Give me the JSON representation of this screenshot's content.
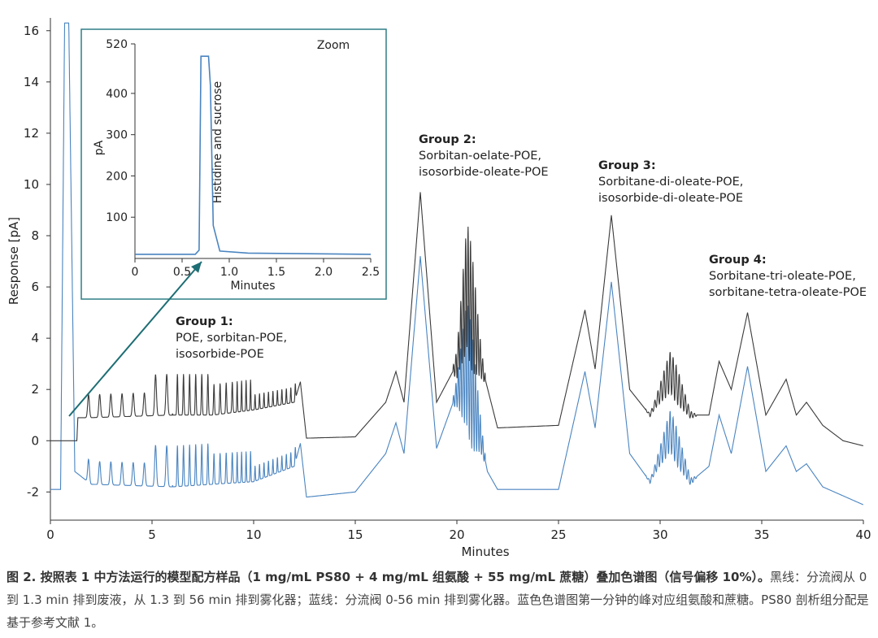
{
  "chart_data": {
    "type": "line",
    "main": {
      "xlabel": "Minutes",
      "ylabel": "Response [pA]",
      "xlim": [
        0,
        40
      ],
      "ylim": [
        -3.1,
        16.5
      ],
      "xticks": [
        "0",
        "5",
        "10",
        "15",
        "20",
        "25",
        "30",
        "35",
        "40"
      ],
      "yticks": [
        "-2",
        "0",
        "2",
        "4",
        "6",
        "8",
        "10",
        "12",
        "14",
        "16"
      ],
      "series": [
        {
          "color": "#3a3a3a",
          "baseline": 0,
          "description_peaks": "sample peak data below"
        },
        {
          "color": "#4a84c0",
          "baseline": -1.9
        }
      ],
      "black_series_points": [
        [
          0,
          0
        ],
        [
          1.3,
          0
        ],
        [
          1.35,
          0.9
        ],
        [
          2.0,
          0.9
        ],
        [
          4.0,
          0.95
        ],
        [
          6.0,
          1.0
        ],
        [
          8.0,
          1.0
        ],
        [
          10.0,
          1.2
        ],
        [
          12.0,
          1.5
        ],
        [
          12.3,
          2.3
        ],
        [
          12.6,
          0.1
        ],
        [
          15.0,
          0.15
        ],
        [
          16.5,
          1.5
        ],
        [
          17.0,
          2.7
        ],
        [
          17.4,
          1.5
        ],
        [
          18.2,
          9.7
        ],
        [
          19.0,
          1.5
        ],
        [
          20.0,
          3.0
        ],
        [
          20.5,
          6.1
        ],
        [
          21.2,
          3.0
        ],
        [
          22.0,
          0.5
        ],
        [
          25.0,
          0.6
        ],
        [
          26.3,
          5.1
        ],
        [
          26.8,
          2.8
        ],
        [
          27.6,
          8.8
        ],
        [
          28.5,
          2.0
        ],
        [
          29.5,
          1.0
        ],
        [
          30.5,
          2.7
        ],
        [
          31.5,
          1.0
        ],
        [
          32.4,
          1.0
        ],
        [
          32.9,
          3.1
        ],
        [
          33.5,
          2.0
        ],
        [
          34.3,
          5.0
        ],
        [
          35.2,
          1.0
        ],
        [
          36.2,
          2.4
        ],
        [
          36.7,
          1.0
        ],
        [
          37.2,
          1.5
        ],
        [
          38.0,
          0.6
        ],
        [
          39.0,
          0.0
        ],
        [
          40.0,
          -0.2
        ]
      ],
      "blue_series_points": [
        [
          0,
          -1.9
        ],
        [
          0.5,
          -1.9
        ],
        [
          0.7,
          16.5
        ],
        [
          0.9,
          16.5
        ],
        [
          1.2,
          -1.2
        ],
        [
          2.0,
          -1.7
        ],
        [
          6.0,
          -1.8
        ],
        [
          10.0,
          -1.6
        ],
        [
          12.0,
          -1.0
        ],
        [
          12.3,
          -0.1
        ],
        [
          12.6,
          -2.2
        ],
        [
          15.0,
          -2.0
        ],
        [
          16.5,
          -0.5
        ],
        [
          17.0,
          0.7
        ],
        [
          17.4,
          -0.5
        ],
        [
          18.2,
          7.2
        ],
        [
          19.0,
          -0.3
        ],
        [
          20.5,
          3.0
        ],
        [
          21.5,
          -1.2
        ],
        [
          22.0,
          -1.9
        ],
        [
          25.0,
          -1.9
        ],
        [
          26.3,
          2.7
        ],
        [
          26.8,
          0.5
        ],
        [
          27.6,
          6.2
        ],
        [
          28.5,
          -0.5
        ],
        [
          29.5,
          -1.6
        ],
        [
          30.5,
          0.4
        ],
        [
          31.5,
          -1.6
        ],
        [
          32.4,
          -1.0
        ],
        [
          32.9,
          1.0
        ],
        [
          33.5,
          -0.5
        ],
        [
          34.3,
          2.9
        ],
        [
          35.2,
          -1.2
        ],
        [
          36.2,
          -0.2
        ],
        [
          36.7,
          -1.2
        ],
        [
          37.2,
          -0.9
        ],
        [
          38.0,
          -1.8
        ],
        [
          40.0,
          -2.5
        ]
      ],
      "annotations": [
        {
          "title": "Group 1:",
          "lines": [
            "POE, sorbitan-POE,",
            "isosorbide-POE"
          ]
        },
        {
          "title": "Group 2:",
          "lines": [
            "Sorbitan-oelate-POE,",
            "isosorbide-oleate-POE"
          ]
        },
        {
          "title": "Group 3:",
          "lines": [
            "Sorbitane-di-oleate-POE,",
            "isosorbide-di-oleate-POE"
          ]
        },
        {
          "title": "Group 4:",
          "lines": [
            "Sorbitane-tri-oleate-POE,",
            "sorbitane-tetra-oleate-POE"
          ]
        }
      ]
    },
    "inset": {
      "title": "Zoom",
      "xlabel": "Minutes",
      "ylabel": "pA",
      "xlim": [
        0,
        2.5
      ],
      "ylim": [
        0,
        520
      ],
      "xticks": [
        "0",
        "0.5",
        "1.0",
        "1.5",
        "2.0",
        "2.5"
      ],
      "yticks": [
        "100",
        "200",
        "300",
        "400",
        "520"
      ],
      "peak_label": "Histidine and sucrose",
      "color": "#4a84c0",
      "points": [
        [
          0,
          10
        ],
        [
          0.64,
          10
        ],
        [
          0.68,
          20
        ],
        [
          0.7,
          490
        ],
        [
          0.78,
          490
        ],
        [
          0.8,
          420
        ],
        [
          0.83,
          80
        ],
        [
          0.9,
          18
        ],
        [
          1.2,
          13
        ],
        [
          2.5,
          10
        ]
      ]
    }
  },
  "caption": {
    "bold": "图 2. 按照表 1 中方法运行的模型配方样品（1 mg/mL PS80 + 4 mg/mL 组氨酸 + 55 mg/mL 蔗糖）叠加色谱图（信号偏移 10%）。",
    "text": "黑线：分流阀从 0 到 1.3 min 排到废液，从 1.3 到 56 min 排到雾化器；蓝线：分流阀 0-56 min 排到雾化器。蓝色色谱图第一分钟的峰对应组氨酸和蔗糖。PS80 剖析组分配是基于参考文献 1。"
  }
}
